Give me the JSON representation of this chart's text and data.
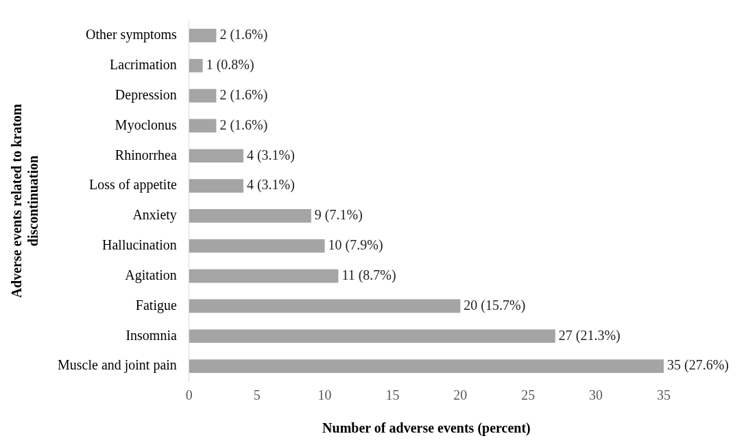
{
  "chart_data": {
    "type": "bar",
    "orientation": "horizontal",
    "xlabel": "Number of adverse events (percent)",
    "ylabel": "Adverse events related to kratom discontinuation",
    "categories": [
      "Other symptoms",
      "Lacrimation",
      "Depression",
      "Myoclonus",
      "Rhinorrhea",
      "Loss of appetite",
      "Anxiety",
      "Hallucination",
      "Agitation",
      "Fatigue",
      "Insomnia",
      "Muscle and joint pain"
    ],
    "values": [
      2,
      1,
      2,
      2,
      4,
      4,
      9,
      10,
      11,
      20,
      27,
      35
    ],
    "value_labels": [
      "2 (1.6%)",
      "1 (0.8%)",
      "2 (1.6%)",
      "2 (1.6%)",
      "4 (3.1%)",
      "4 (3.1%)",
      "9 (7.1%)",
      "10 (7.9%)",
      "11 (8.7%)",
      "20 (15.7%)",
      "27 (21.3%)",
      "35 (27.6%)"
    ],
    "color": "#a5a5a5",
    "xlim": [
      0,
      35
    ],
    "xticks": [
      0,
      5,
      10,
      15,
      20,
      25,
      30,
      35
    ],
    "grid": false,
    "legend": false
  }
}
